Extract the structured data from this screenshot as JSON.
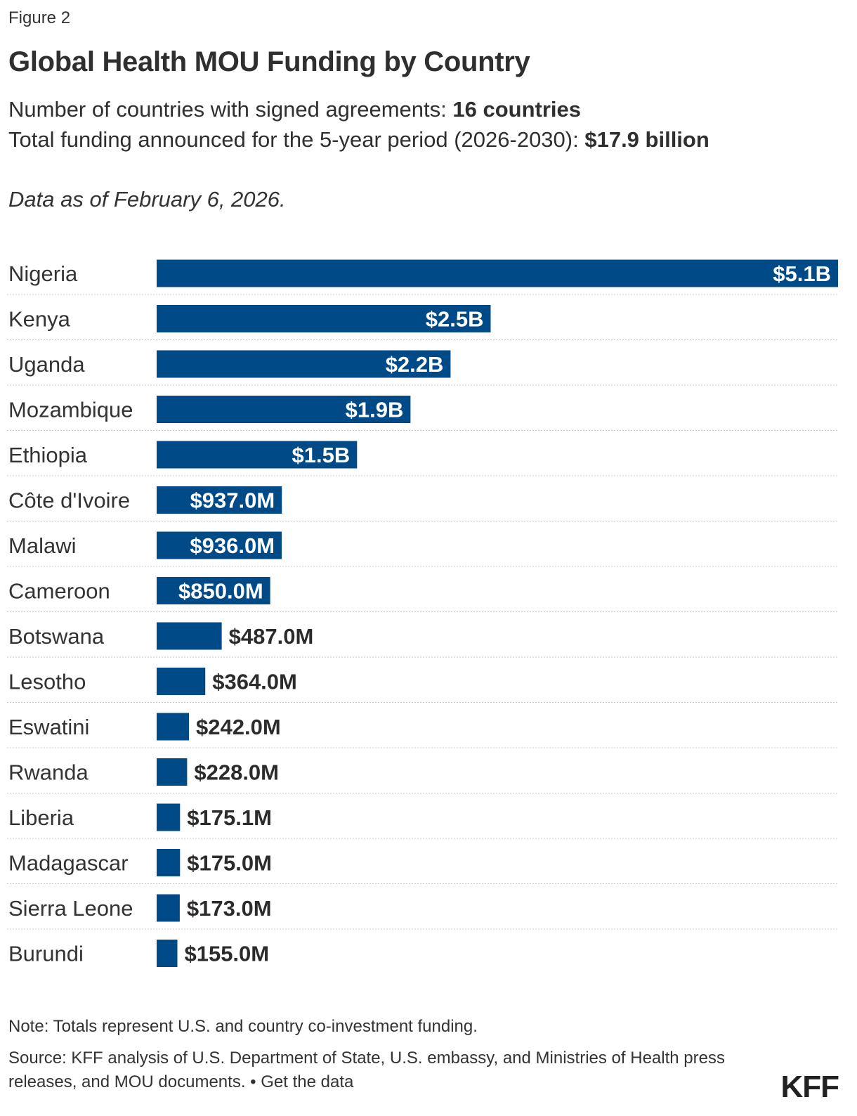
{
  "header": {
    "figure_label": "Figure 2",
    "title": "Global Health MOU Funding by Country",
    "subtitle_line1_text": "Number of countries with signed agreements: ",
    "subtitle_line1_value": "16 countries",
    "subtitle_line2_text": "Total funding announced for the 5-year period (2026-2030): ",
    "subtitle_line2_value": "$17.9 billion",
    "data_date": "Data as of February 6, 2026."
  },
  "chart_data": {
    "type": "bar",
    "orientation": "horizontal",
    "categories": [
      "Nigeria",
      "Kenya",
      "Uganda",
      "Mozambique",
      "Ethiopia",
      "Côte d'Ivoire",
      "Malawi",
      "Cameroon",
      "Botswana",
      "Lesotho",
      "Eswatini",
      "Rwanda",
      "Liberia",
      "Madagascar",
      "Sierra Leone",
      "Burundi"
    ],
    "values": [
      5100,
      2500,
      2200,
      1900,
      1500,
      937.0,
      936.0,
      850.0,
      487.0,
      364.0,
      242.0,
      228.0,
      175.1,
      175.0,
      173.0,
      155.0
    ],
    "value_unit": "millions USD",
    "labels": [
      "$5.1B",
      "$2.5B",
      "$2.2B",
      "$1.9B",
      "$1.5B",
      "$937.0M",
      "$936.0M",
      "$850.0M",
      "$487.0M",
      "$364.0M",
      "$242.0M",
      "$228.0M",
      "$175.1M",
      "$175.0M",
      "$173.0M",
      "$155.0M"
    ],
    "title": "",
    "xlabel": "",
    "ylabel": "",
    "bar_color": "#004a87",
    "grid": false,
    "legend": "none"
  },
  "footer": {
    "note": "Note: Totals represent U.S. and country co-investment funding.",
    "source_text": "Source: KFF analysis of U.S. Department of State, U.S. embassy, and Ministries of Health press releases, and MOU documents. • ",
    "get_data_link": "Get the data",
    "logo": "KFF"
  }
}
